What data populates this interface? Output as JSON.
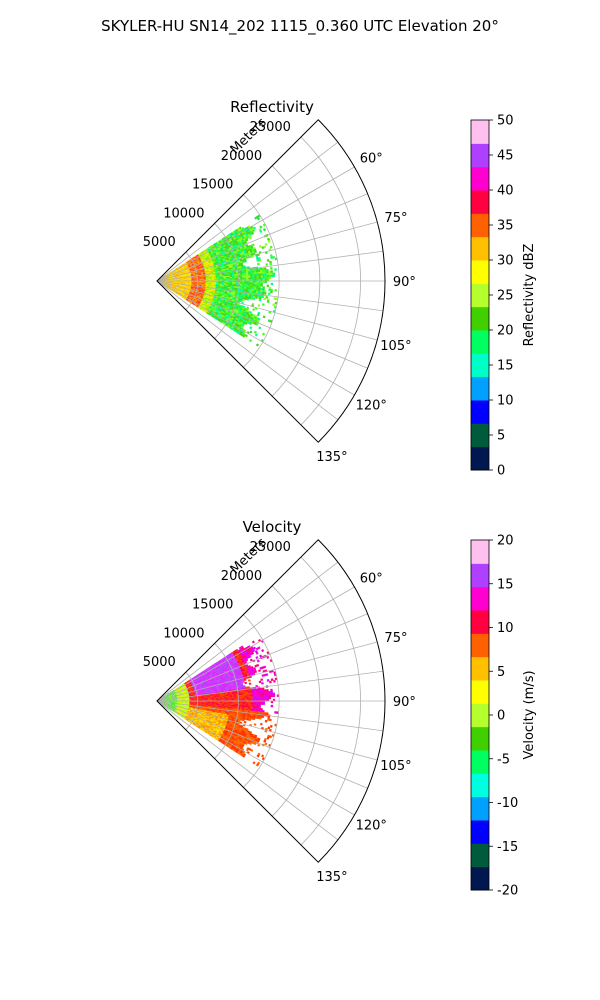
{
  "figure": {
    "title": "SKYLER-HU  SN14_202  1115_0.360 UTC Elevation 20°"
  },
  "chart_data": [
    {
      "type": "heatmap",
      "projection": "polar-sector",
      "title": "Reflectivity",
      "range_label": "Meters",
      "range_ticks": [
        5000,
        10000,
        15000,
        20000,
        25000
      ],
      "range_tick_labels": [
        "5000",
        "10000",
        "15000",
        "20000",
        "25000"
      ],
      "rlim": [
        0,
        28000
      ],
      "azimuth_range_deg": [
        45,
        135
      ],
      "azimuth_ticks": [
        60,
        75,
        90,
        105,
        120,
        135
      ],
      "azimuth_tick_labels": [
        "60°",
        "75°",
        "90°",
        "105°",
        "120°",
        "135°"
      ],
      "grid": true,
      "data_extent": {
        "max_range_m": 15000,
        "azimuth_deg": [
          57,
          123
        ]
      },
      "colorbar": {
        "label": "Reflectivity dBZ",
        "vmin": 0,
        "vmax": 50,
        "ticks": [
          0,
          5,
          10,
          15,
          20,
          25,
          30,
          35,
          40,
          45,
          50
        ],
        "tick_labels": [
          "0",
          "5",
          "10",
          "15",
          "20",
          "25",
          "30",
          "35",
          "40",
          "45",
          "50"
        ],
        "colors": [
          "#00174f",
          "#005a3c",
          "#0000ff",
          "#00a0ff",
          "#00ffc8",
          "#00ff60",
          "#40d000",
          "#b4ff2c",
          "#ffff00",
          "#ffc000",
          "#ff6000",
          "#ff0040",
          "#ff00d0",
          "#b040ff",
          "#ffc0f0"
        ]
      }
    },
    {
      "type": "heatmap",
      "projection": "polar-sector",
      "title": "Velocity",
      "range_label": "Meters",
      "range_ticks": [
        5000,
        10000,
        15000,
        20000,
        25000
      ],
      "range_tick_labels": [
        "5000",
        "10000",
        "15000",
        "20000",
        "25000"
      ],
      "rlim": [
        0,
        28000
      ],
      "azimuth_range_deg": [
        45,
        135
      ],
      "azimuth_ticks": [
        60,
        75,
        90,
        105,
        120,
        135
      ],
      "azimuth_tick_labels": [
        "60°",
        "75°",
        "90°",
        "105°",
        "120°",
        "135°"
      ],
      "grid": true,
      "data_extent": {
        "max_range_m": 15000,
        "azimuth_deg": [
          57,
          123
        ]
      },
      "colorbar": {
        "label": "Velocity (m/s)",
        "vmin": -20,
        "vmax": 20,
        "ticks": [
          -20,
          -15,
          -10,
          -5,
          0,
          5,
          10,
          15,
          20
        ],
        "tick_labels": [
          "-20",
          "-15",
          "-10",
          "-5",
          "0",
          "5",
          "10",
          "15",
          "20"
        ],
        "colors": [
          "#00174f",
          "#005a3c",
          "#0000ff",
          "#00a0ff",
          "#00ffe0",
          "#00ff60",
          "#40d000",
          "#b4ff2c",
          "#ffff00",
          "#ffc000",
          "#ff6000",
          "#ff0040",
          "#ff00d0",
          "#b040ff",
          "#ffc0f0"
        ]
      }
    }
  ]
}
